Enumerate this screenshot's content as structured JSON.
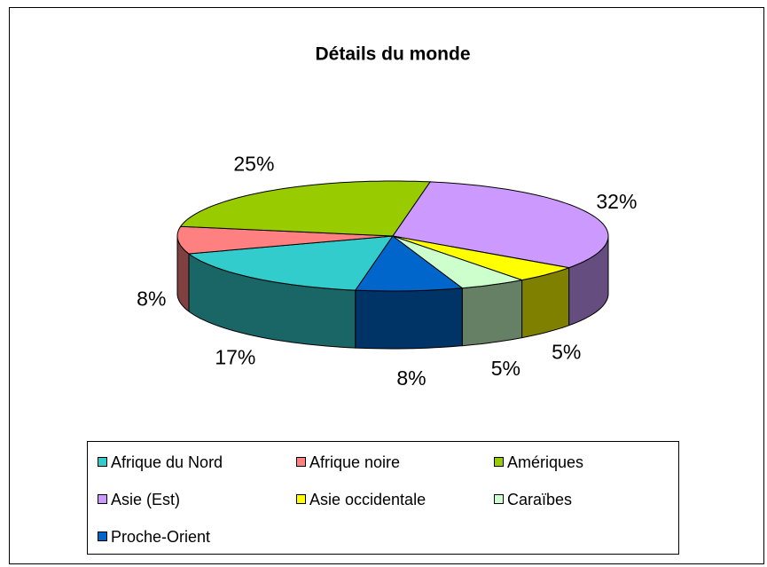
{
  "chart_data": {
    "type": "pie",
    "title": "Détails du monde",
    "categories": [
      "Afrique du Nord",
      "Afrique noire",
      "Amériques",
      "Asie (Est)",
      "Asie occidentale",
      "Caraïbes",
      "Proche-Orient"
    ],
    "values": [
      17,
      8,
      25,
      32,
      5,
      5,
      8
    ],
    "value_labels": [
      "17%",
      "8%",
      "25%",
      "32%",
      "5%",
      "5%",
      "8%"
    ],
    "colors": [
      "#33cccc",
      "#ff8080",
      "#99cc00",
      "#cc99ff",
      "#ffff00",
      "#ccffcc",
      "#0066cc"
    ],
    "legend": "bottom"
  }
}
